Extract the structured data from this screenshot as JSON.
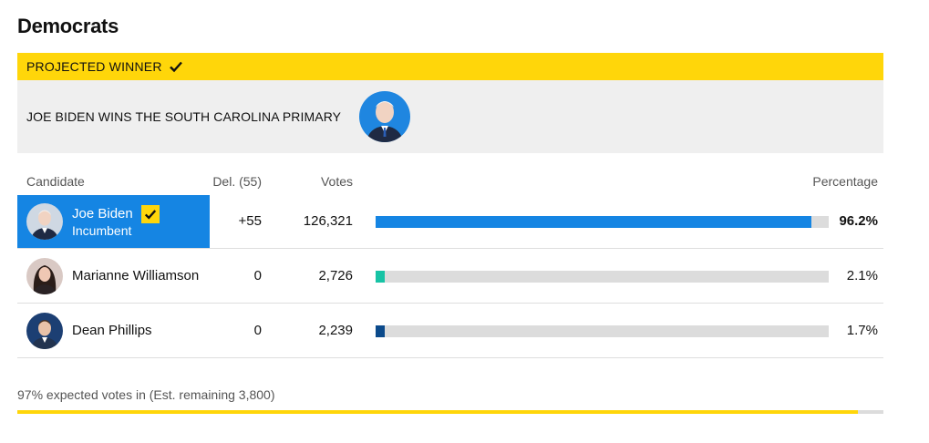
{
  "party": {
    "title": "Democrats"
  },
  "projected": {
    "label": "PROJECTED WINNER",
    "headline": "JOE BIDEN WINS THE SOUTH CAROLINA PRIMARY",
    "color": "#ffd60a"
  },
  "table": {
    "headers": {
      "candidate": "Candidate",
      "delegates": "Del. (55)",
      "votes": "Votes",
      "percentage": "Percentage"
    },
    "rows": [
      {
        "name": "Joe Biden",
        "subtitle": "Incumbent",
        "winner": true,
        "delegates": "+55",
        "votes": "126,321",
        "percentage": "96.2%",
        "share": 96.2,
        "color": "#1585e3",
        "avatar_color": "#cfd8e3"
      },
      {
        "name": "Marianne Williamson",
        "subtitle": "",
        "winner": false,
        "delegates": "0",
        "votes": "2,726",
        "percentage": "2.1%",
        "share": 2.1,
        "color": "#17c3a5",
        "avatar_color": "#d9c9c4"
      },
      {
        "name": "Dean Phillips",
        "subtitle": "",
        "winner": false,
        "delegates": "0",
        "votes": "2,239",
        "percentage": "1.7%",
        "share": 1.7,
        "color": "#0b4a8b",
        "avatar_color": "#1c3f73"
      }
    ]
  },
  "footer": {
    "expected_text": "97% expected votes in (Est. remaining 3,800)",
    "expected_fraction": 0.97,
    "progress_color": "#ffd60a"
  }
}
